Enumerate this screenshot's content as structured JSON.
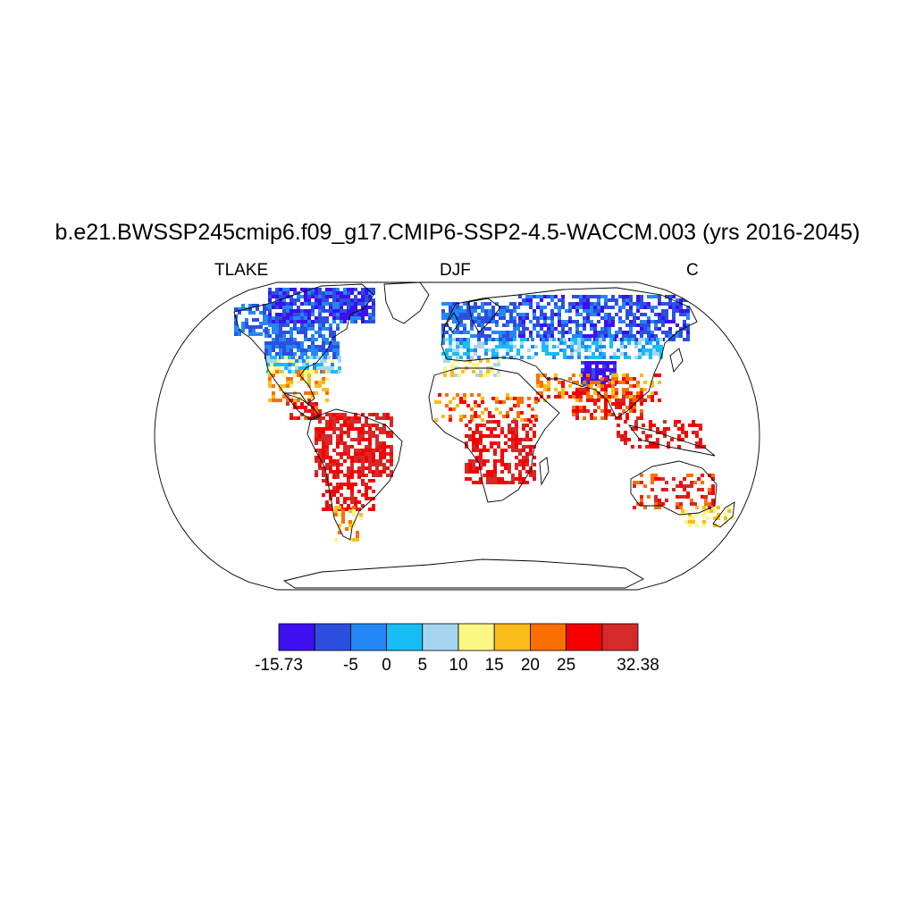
{
  "title": "b.e21.BWSSP245cmip6.f09_g17.CMIP6-SSP2-4.5-WACCM.003 (yrs 2016-2045)",
  "left_label": "TLAKE",
  "center_label": "DJF",
  "right_label": "C",
  "projection": "Robinson",
  "colorbar": {
    "colors": [
      "#3d10ef",
      "#2c4fe0",
      "#2387f5",
      "#17bdf5",
      "#a6d6ef",
      "#fcf684",
      "#fbbd1a",
      "#fa7000",
      "#f80000",
      "#d42a2a"
    ],
    "labels": [
      {
        "text": "-15.73",
        "boundary": 0
      },
      {
        "text": "-5",
        "boundary": 2
      },
      {
        "text": "0",
        "boundary": 3
      },
      {
        "text": "5",
        "boundary": 4
      },
      {
        "text": "10",
        "boundary": 5
      },
      {
        "text": "15",
        "boundary": 6
      },
      {
        "text": "20",
        "boundary": 7
      },
      {
        "text": "25",
        "boundary": 8
      },
      {
        "text": "32.38",
        "boundary": 10
      }
    ]
  }
}
